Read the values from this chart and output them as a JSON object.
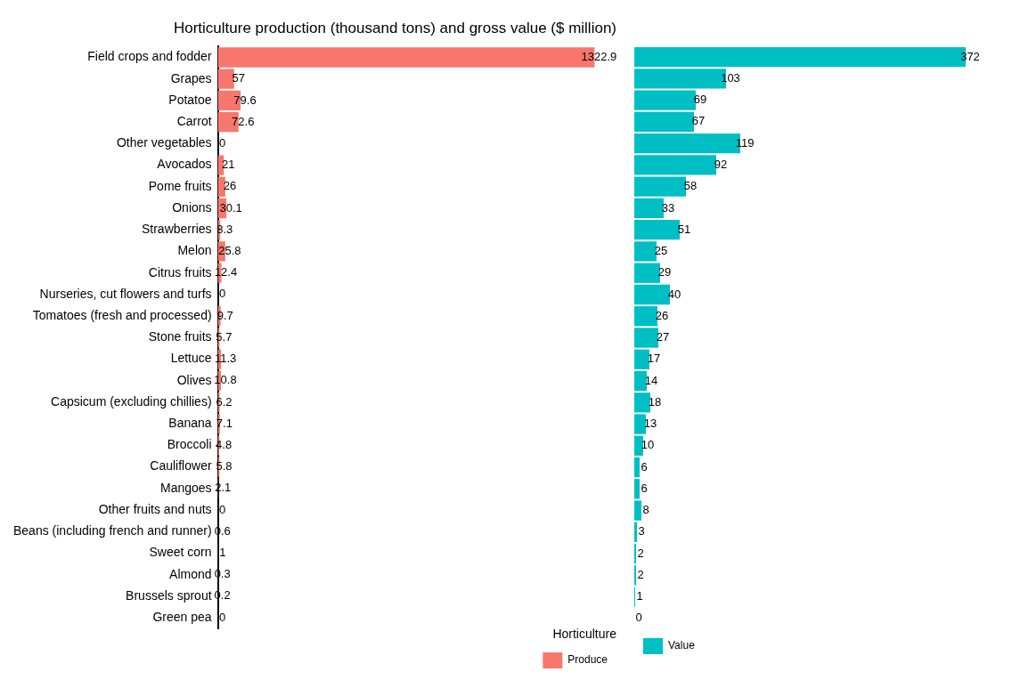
{
  "chart_data": [
    {
      "type": "bar",
      "orientation": "horizontal",
      "title": "Horticulture production (thousand tons) and gross value ($ million)",
      "legend_title": "Horticulture",
      "legend": "bottom",
      "grid": false,
      "data_labels": true,
      "tick_labels": "y",
      "categories": [
        "Field crops and fodder",
        "Grapes",
        "Potatoe",
        "Carrot",
        "Other vegetables",
        "Avocados",
        "Pome fruits",
        "Onions",
        "Strawberries",
        "Melon",
        "Citrus fruits",
        "Nurseries, cut flowers and turfs",
        "Tomatoes (fresh and processed)",
        "Stone fruits",
        "Lettuce",
        "Olives",
        "Capsicum (excluding chillies)",
        "Banana",
        "Broccoli",
        "Cauliflower",
        "Mangoes",
        "Other fruits and nuts",
        "Beans (including french and runner)",
        "Sweet corn",
        "Almond",
        "Brussels sprout",
        "Green pea"
      ],
      "series": [
        {
          "name": "Produce",
          "color": "#f8766d",
          "values": [
            1322.9,
            57,
            79.6,
            72.6,
            0,
            21,
            26,
            30.1,
            8.3,
            25.8,
            12.4,
            0,
            9.7,
            5.7,
            11.3,
            10.8,
            6.2,
            7.1,
            4.8,
            5.8,
            2.1,
            0,
            0.6,
            1,
            0.3,
            0.2,
            0
          ]
        }
      ]
    },
    {
      "type": "bar",
      "orientation": "horizontal",
      "legend": "bottom",
      "grid": false,
      "data_labels": true,
      "tick_labels": false,
      "categories": [
        null,
        null,
        null,
        null,
        null,
        null,
        null,
        null,
        null,
        null,
        null,
        null,
        null,
        null,
        null,
        null,
        null,
        null,
        null,
        null,
        null,
        null,
        null,
        null,
        null,
        null,
        null
      ],
      "series": [
        {
          "name": "Value",
          "color": "#00bfc4",
          "values": [
            372,
            103,
            69,
            67,
            119,
            92,
            58,
            33,
            51,
            25,
            29,
            40,
            26,
            27,
            17,
            14,
            18,
            13,
            10,
            6,
            6,
            8,
            3,
            2,
            2,
            1,
            0
          ]
        }
      ]
    }
  ]
}
